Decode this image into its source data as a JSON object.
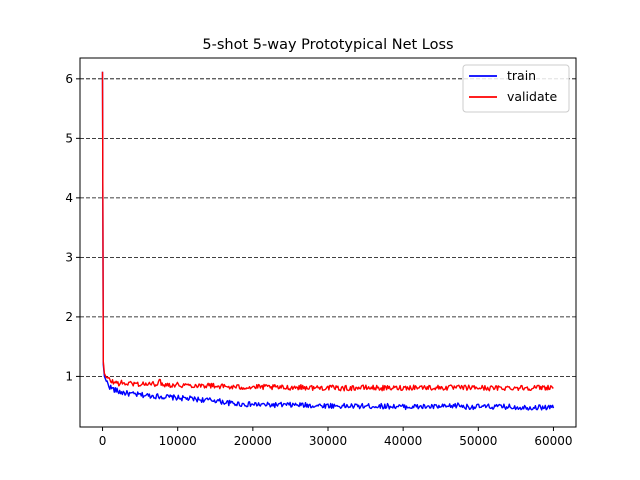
{
  "chart_data": {
    "type": "line",
    "title": "5-shot 5-way Prototypical Net Loss",
    "xlabel": "",
    "ylabel": "",
    "xlim": [
      -3000,
      63000
    ],
    "ylim": [
      0.15,
      6.35
    ],
    "xticks": [
      0,
      10000,
      20000,
      30000,
      40000,
      50000,
      60000
    ],
    "xtick_labels": [
      "0",
      "10000",
      "20000",
      "30000",
      "40000",
      "50000",
      "60000"
    ],
    "yticks": [
      1,
      2,
      3,
      4,
      5,
      6
    ],
    "ytick_labels": [
      "1",
      "2",
      "3",
      "4",
      "5",
      "6"
    ],
    "grid": "horizontal dashed",
    "legend_position": "top-right",
    "series": [
      {
        "name": "train",
        "color": "#0000ff",
        "x": [
          0,
          100,
          250,
          500,
          1000,
          1500,
          2000,
          3000,
          4000,
          5000,
          6000,
          7000,
          8000,
          9000,
          10000,
          11000,
          12000,
          13000,
          14000,
          15000,
          16000,
          17000,
          18000,
          19000,
          20000,
          22000,
          24000,
          26000,
          28000,
          30000,
          32000,
          34000,
          36000,
          38000,
          40000,
          42000,
          44000,
          46000,
          47500,
          48000,
          50000,
          52000,
          54000,
          56000,
          58000,
          60000
        ],
        "y": [
          6.12,
          1.2,
          1.0,
          0.92,
          0.82,
          0.78,
          0.75,
          0.72,
          0.7,
          0.69,
          0.68,
          0.67,
          0.66,
          0.65,
          0.64,
          0.63,
          0.62,
          0.61,
          0.6,
          0.6,
          0.57,
          0.55,
          0.54,
          0.53,
          0.53,
          0.52,
          0.52,
          0.52,
          0.51,
          0.51,
          0.5,
          0.5,
          0.5,
          0.5,
          0.49,
          0.49,
          0.49,
          0.49,
          0.52,
          0.49,
          0.49,
          0.49,
          0.49,
          0.48,
          0.48,
          0.48
        ]
      },
      {
        "name": "validate",
        "color": "#ff0000",
        "x": [
          0,
          100,
          250,
          500,
          1000,
          1500,
          2000,
          3000,
          4000,
          5000,
          6000,
          7000,
          7500,
          8000,
          9000,
          10000,
          12000,
          14000,
          15000,
          16000,
          17000,
          18000,
          20000,
          22000,
          24000,
          26000,
          28000,
          30000,
          32000,
          34000,
          36000,
          38000,
          40000,
          42000,
          44000,
          46000,
          48000,
          50000,
          52000,
          54000,
          56000,
          58000,
          60000
        ],
        "y": [
          6.12,
          1.25,
          1.05,
          0.98,
          0.93,
          0.9,
          0.89,
          0.88,
          0.88,
          0.87,
          0.87,
          0.87,
          0.92,
          0.87,
          0.86,
          0.86,
          0.85,
          0.85,
          0.84,
          0.83,
          0.82,
          0.82,
          0.82,
          0.82,
          0.81,
          0.82,
          0.81,
          0.81,
          0.8,
          0.81,
          0.81,
          0.8,
          0.81,
          0.82,
          0.81,
          0.81,
          0.81,
          0.81,
          0.8,
          0.81,
          0.81,
          0.81,
          0.82
        ]
      }
    ]
  }
}
